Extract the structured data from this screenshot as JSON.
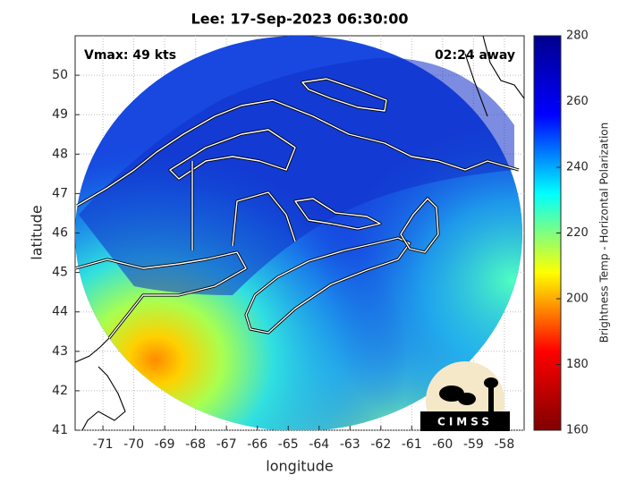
{
  "chart_data": {
    "type": "map",
    "title": "Lee: 17-Sep-2023 06:30:00",
    "annotations": [
      "Vmax: 49 kts",
      "02:24 away"
    ],
    "x_label": "longitude",
    "y_label": "latitude",
    "xlim": [
      -71.9,
      -57.36
    ],
    "xticks": [
      -71,
      -70,
      -69,
      -68,
      -67,
      -66,
      -65,
      -64,
      -63,
      -62,
      -61,
      -60,
      -59,
      -58
    ],
    "ylim": [
      41,
      51
    ],
    "yticks": [
      41,
      42,
      43,
      44,
      45,
      46,
      47,
      48,
      49,
      50
    ],
    "grid": true,
    "colorbar": {
      "label": "Brightness Temp - Horizontal Polarization",
      "lim": [
        160,
        280
      ],
      "ticks": [
        160,
        180,
        200,
        220,
        240,
        260,
        280
      ],
      "colors": [
        "#800000",
        "#ff0000",
        "#ffff00",
        "#00ffff",
        "#0000ff",
        "#00008f"
      ]
    },
    "logo": "CIMSS"
  }
}
